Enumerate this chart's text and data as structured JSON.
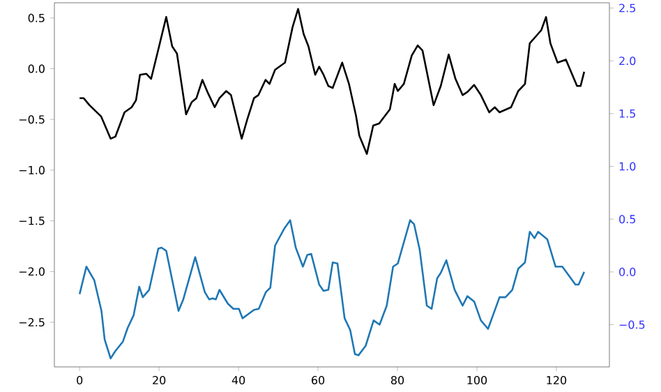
{
  "chart_data": {
    "type": "line",
    "xlim": [
      -6.35,
      133.35
    ],
    "xticks": [
      0,
      20,
      40,
      60,
      80,
      100,
      120
    ],
    "ylim": [
      -2.94,
      0.65
    ],
    "yticks": [
      {
        "value": -2.5,
        "label": "−2.5"
      },
      {
        "value": -2.0,
        "label": "−2.0"
      },
      {
        "value": -1.5,
        "label": "−1.5"
      },
      {
        "value": -1.0,
        "label": "−1.0"
      },
      {
        "value": -0.5,
        "label": "−0.5"
      },
      {
        "value": 0.0,
        "label": "0.0"
      },
      {
        "value": 0.5,
        "label": "0.5"
      }
    ],
    "y2lim": [
      -0.9,
      2.55
    ],
    "y2ticks": [
      {
        "value": -0.5,
        "label": "−0.5"
      },
      {
        "value": 0.0,
        "label": "0.0"
      },
      {
        "value": 0.5,
        "label": "0.5"
      },
      {
        "value": 1.0,
        "label": "1.0"
      },
      {
        "value": 1.5,
        "label": "1.5"
      },
      {
        "value": 2.0,
        "label": "2.0"
      },
      {
        "value": 2.5,
        "label": "2.5"
      }
    ],
    "series": [
      {
        "color": "#000000",
        "x": [
          0,
          1,
          2.5,
          5.4,
          7.8,
          9,
          11.3,
          13.1,
          14.2,
          15.2,
          16.8,
          18,
          20,
          21.8,
          23.3,
          24.5,
          26.8,
          28.2,
          29.4,
          30.9,
          32.3,
          34,
          35.2,
          36.9,
          38.1,
          40.8,
          42.2,
          43.9,
          45,
          46.8,
          47.8,
          49.2,
          51.7,
          53.6,
          55,
          56.4,
          57.6,
          59.3,
          60.3,
          61.4,
          62.6,
          63.7,
          66.1,
          67.8,
          69.6,
          70.4,
          72.3,
          73.9,
          75.4,
          78.1,
          79.3,
          80.1,
          81.6,
          83.6,
          85.1,
          86.3,
          89.1,
          90.9,
          92.9,
          94.6,
          96.4,
          97.6,
          99.3,
          101,
          103.1,
          104.5,
          105.7,
          108.6,
          110.4,
          112.1,
          113.3,
          116.2,
          117.4,
          118.5,
          120.3,
          122.4,
          125.2,
          126.1,
          127
        ],
        "values": [
          -0.29,
          -0.29,
          -0.36,
          -0.47,
          -0.69,
          -0.67,
          -0.43,
          -0.38,
          -0.31,
          -0.06,
          -0.05,
          -0.1,
          0.22,
          0.51,
          0.22,
          0.15,
          -0.45,
          -0.33,
          -0.29,
          -0.11,
          -0.24,
          -0.38,
          -0.29,
          -0.22,
          -0.26,
          -0.69,
          -0.5,
          -0.29,
          -0.26,
          -0.11,
          -0.15,
          -0.01,
          0.06,
          0.41,
          0.59,
          0.34,
          0.22,
          -0.06,
          0.02,
          -0.06,
          -0.17,
          -0.19,
          0.06,
          -0.15,
          -0.47,
          -0.66,
          -0.84,
          -0.56,
          -0.54,
          -0.4,
          -0.15,
          -0.22,
          -0.15,
          0.13,
          0.23,
          0.18,
          -0.36,
          -0.17,
          0.14,
          -0.1,
          -0.26,
          -0.23,
          -0.16,
          -0.26,
          -0.43,
          -0.38,
          -0.43,
          -0.38,
          -0.22,
          -0.15,
          0.25,
          0.38,
          0.51,
          0.25,
          0.06,
          0.09,
          -0.17,
          -0.17,
          -0.03
        ]
      },
      {
        "color": "#1f77b4",
        "axis": "y2",
        "x": [
          0,
          1.7,
          3.7,
          5.5,
          6.3,
          7.8,
          9,
          10.9,
          12.1,
          13.6,
          15,
          15.9,
          17.5,
          19.8,
          20.6,
          21.8,
          24.9,
          26.1,
          29.1,
          31.5,
          32.6,
          33.5,
          34.3,
          35.2,
          37.3,
          38.7,
          40.1,
          41,
          43.9,
          45.1,
          46.9,
          48,
          49.2,
          51.5,
          53,
          54.4,
          56.2,
          57.3,
          58.3,
          60.3,
          61.4,
          62.6,
          63.7,
          64.9,
          66.7,
          68.1,
          69.3,
          70.2,
          72,
          74,
          75.5,
          77.3,
          78.9,
          80.1,
          83.2,
          84.2,
          85.6,
          87.4,
          88.6,
          90,
          90.9,
          92.3,
          94.4,
          96.4,
          97.6,
          99.3,
          101,
          102.8,
          105.7,
          107.2,
          108.9,
          110.4,
          112.1,
          113.3,
          114.5,
          115.4,
          117.7,
          119.8,
          121.5,
          124.8,
          125.6,
          127
        ],
        "values": [
          -0.21,
          0.05,
          -0.08,
          -0.37,
          -0.64,
          -0.82,
          -0.75,
          -0.66,
          -0.53,
          -0.41,
          -0.14,
          -0.24,
          -0.17,
          0.22,
          0.23,
          0.2,
          -0.37,
          -0.26,
          0.14,
          -0.19,
          -0.26,
          -0.25,
          -0.26,
          -0.17,
          -0.3,
          -0.35,
          -0.35,
          -0.44,
          -0.36,
          -0.35,
          -0.19,
          -0.15,
          0.25,
          0.41,
          0.49,
          0.23,
          0.05,
          0.16,
          0.17,
          -0.12,
          -0.18,
          -0.17,
          0.09,
          0.08,
          -0.44,
          -0.55,
          -0.78,
          -0.79,
          -0.7,
          -0.46,
          -0.5,
          -0.32,
          0.05,
          0.08,
          0.49,
          0.45,
          0.21,
          -0.32,
          -0.35,
          -0.06,
          -0.01,
          0.11,
          -0.17,
          -0.32,
          -0.23,
          -0.28,
          -0.46,
          -0.54,
          -0.24,
          -0.24,
          -0.17,
          0.03,
          0.09,
          0.38,
          0.32,
          0.38,
          0.31,
          0.05,
          0.05,
          -0.12,
          -0.12,
          0
        ]
      }
    ]
  }
}
